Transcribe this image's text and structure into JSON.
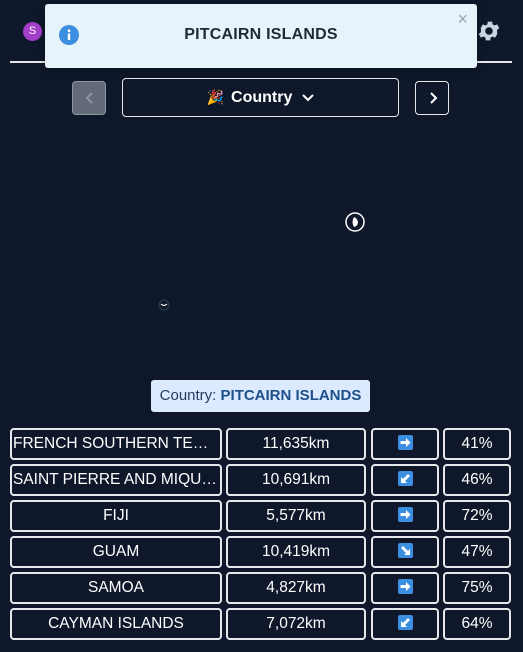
{
  "header": {
    "avatar_letter": "S",
    "icons": {
      "settings": "gear-icon",
      "avatar": "avatar"
    }
  },
  "toast": {
    "title": "PITCAIRN ISLANDS",
    "close_label": "×",
    "icon": "info-icon"
  },
  "mode_selector": {
    "emoji": "🎉",
    "label": "Country"
  },
  "country_label": {
    "prefix": "Country:",
    "name": "PITCAIRN ISLANDS"
  },
  "guesses": [
    {
      "country": "FRENCH SOUTHERN TERRITORIES",
      "distance": "11,635km",
      "direction": "east",
      "proximity": "41%"
    },
    {
      "country": "SAINT PIERRE AND MIQUELON",
      "distance": "10,691km",
      "direction": "southwest",
      "proximity": "46%"
    },
    {
      "country": "FIJI",
      "distance": "5,577km",
      "direction": "east",
      "proximity": "72%"
    },
    {
      "country": "GUAM",
      "distance": "10,419km",
      "direction": "southeast",
      "proximity": "47%"
    },
    {
      "country": "SAMOA",
      "distance": "4,827km",
      "direction": "east",
      "proximity": "75%"
    },
    {
      "country": "CAYMAN ISLANDS",
      "distance": "7,072km",
      "direction": "southwest",
      "proximity": "64%"
    }
  ],
  "colors": {
    "background": "#0f172a",
    "toast_bg": "#e6f3fb",
    "info": "#3b8ee0",
    "avatar": "#a23ec8",
    "pill_bg": "#dbeafe",
    "arrow_box": "#3b8ee0"
  }
}
